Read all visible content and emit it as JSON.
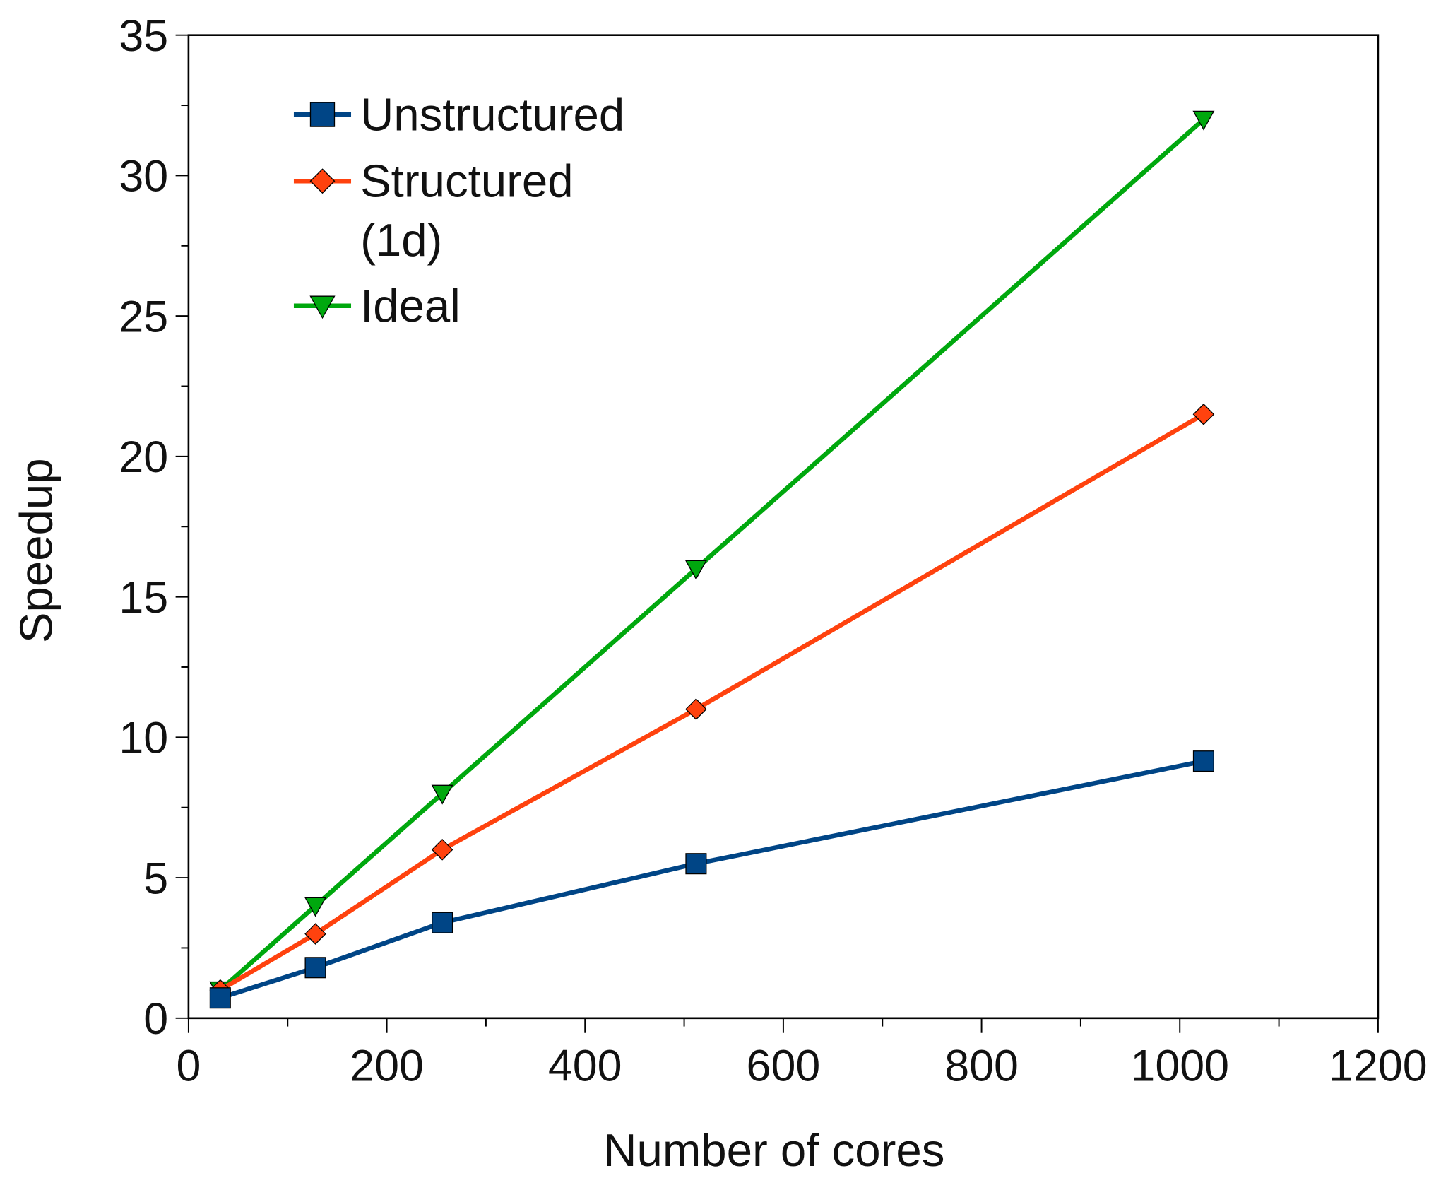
{
  "chart_data": {
    "type": "line",
    "title": "",
    "xlabel": "Number of cores",
    "ylabel": "Speedup",
    "xlim": [
      0,
      1200
    ],
    "ylim": [
      0,
      35
    ],
    "xticks": [
      0,
      200,
      400,
      600,
      800,
      1000,
      1200
    ],
    "yticks": [
      0,
      5,
      10,
      15,
      20,
      25,
      30,
      35
    ],
    "grid": false,
    "legend_position": "top-left",
    "x": [
      32,
      128,
      256,
      512,
      1024
    ],
    "series": [
      {
        "name": "Unstructured",
        "color": "#004586",
        "marker": "square",
        "values": [
          0.72,
          1.8,
          3.4,
          5.5,
          9.15
        ]
      },
      {
        "name": "Structured (1d)",
        "legend_lines": [
          "Structured",
          "(1d)"
        ],
        "color": "#ff420e",
        "marker": "diamond",
        "values": [
          1,
          3,
          6,
          11,
          21.5
        ]
      },
      {
        "name": "Ideal",
        "color": "#00a80e",
        "marker": "triangle-down",
        "values": [
          1,
          4,
          8,
          16,
          32
        ]
      }
    ]
  }
}
